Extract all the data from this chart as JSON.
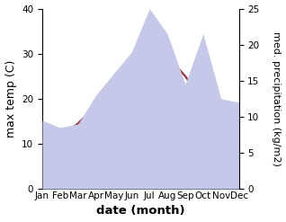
{
  "months": [
    "Jan",
    "Feb",
    "Mar",
    "Apr",
    "May",
    "Jun",
    "Jul",
    "Aug",
    "Sep",
    "Oct",
    "Nov",
    "Dec"
  ],
  "max_temp": [
    10.5,
    11.5,
    14.5,
    18.5,
    22.5,
    26.0,
    29.0,
    29.5,
    25.0,
    19.5,
    13.5,
    10.5
  ],
  "precipitation": [
    9.5,
    8.5,
    9.0,
    13.0,
    16.0,
    19.0,
    25.0,
    21.5,
    14.5,
    21.5,
    12.5,
    12.0
  ],
  "temp_color": "#993333",
  "precip_fill_color": "#c5c8e8",
  "precip_edge_color": "#c5c8e8",
  "temp_ylim": [
    0,
    40
  ],
  "precip_ylim": [
    0,
    25
  ],
  "temp_yticks": [
    0,
    10,
    20,
    30,
    40
  ],
  "precip_yticks": [
    0,
    5,
    10,
    15,
    20,
    25
  ],
  "xlabel": "date (month)",
  "ylabel_left": "max temp (C)",
  "ylabel_right": "med. precipitation (kg/m2)",
  "background_color": "#ffffff",
  "tick_fontsize": 7.5,
  "label_fontsize": 9,
  "xlabel_fontsize": 9.5
}
